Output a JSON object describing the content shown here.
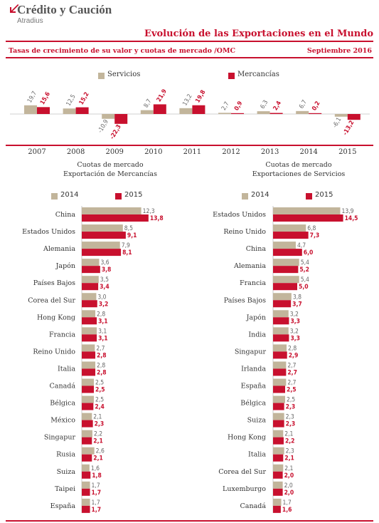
{
  "header": {
    "brand": "Crédito y Caución",
    "brand_sub": "Atradius",
    "title": "Evolución de las Exportaciones en el Mundo",
    "subtitle": "Tasas de crecimiento de su valor y cuotas de mercado /OMC",
    "date": "Septiembre 2016"
  },
  "colors": {
    "servicios": "#c2b59b",
    "mercancias": "#c8102e",
    "accent": "#c8102e"
  },
  "chart_data": [
    {
      "type": "bar",
      "legend": [
        "Servicios",
        "Mercancías"
      ],
      "categories": [
        "2007",
        "2008",
        "2009",
        "2010",
        "2011",
        "2012",
        "2013",
        "2014",
        "2015"
      ],
      "series": [
        {
          "name": "Servicios",
          "values": [
            19.7,
            12.5,
            -10.9,
            8.7,
            13.2,
            2.7,
            6.3,
            6.7,
            -6.1
          ],
          "labels": [
            "19,7",
            "12,5",
            "-10,9",
            "8,7",
            "13,2",
            "2,7",
            "6,3",
            "6,7",
            "-6,1"
          ]
        },
        {
          "name": "Mercancías",
          "values": [
            15.6,
            15.2,
            -22.3,
            21.9,
            19.8,
            0.9,
            2.4,
            0.2,
            -13.2
          ],
          "labels": [
            "15,6",
            "15,2",
            "-22,3",
            "21,9",
            "19,8",
            "0,9",
            "2,4",
            "0,2",
            "-13,2"
          ]
        }
      ]
    },
    {
      "type": "bar",
      "orientation": "horizontal",
      "title": "Cuotas de mercado\nExportación de Mercancías",
      "legend": [
        "2014",
        "2015"
      ],
      "categories": [
        "China",
        "Estados Unidos",
        "Alemania",
        "Japón",
        "Países Bajos",
        "Corea del Sur",
        "Hong Kong",
        "Francia",
        "Reino Unido",
        "Italia",
        "Canadá",
        "Bélgica",
        "México",
        "Singapur",
        "Rusia",
        "Suiza",
        "Taipei",
        "España"
      ],
      "series": [
        {
          "name": "2014",
          "values": [
            12.3,
            8.5,
            7.9,
            3.6,
            3.5,
            3.0,
            2.8,
            3.1,
            2.7,
            2.8,
            2.5,
            2.5,
            2.1,
            2.2,
            2.6,
            1.6,
            1.7,
            1.7
          ],
          "labels": [
            "12,3",
            "8,5",
            "7,9",
            "3,6",
            "3,5",
            "3,0",
            "2,8",
            "3,1",
            "2,7",
            "2,8",
            "2,5",
            "2,5",
            "2,1",
            "2,2",
            "2,6",
            "1,6",
            "1,7",
            "1,7"
          ]
        },
        {
          "name": "2015",
          "values": [
            13.8,
            9.1,
            8.1,
            3.8,
            3.4,
            3.2,
            3.1,
            3.1,
            2.8,
            2.8,
            2.5,
            2.4,
            2.3,
            2.1,
            2.1,
            1.8,
            1.7,
            1.7
          ],
          "labels": [
            "13,8",
            "9,1",
            "8,1",
            "3,8",
            "3,4",
            "3,2",
            "3,1",
            "3,1",
            "2,8",
            "2,8",
            "2,5",
            "2,4",
            "2,3",
            "2,1",
            "2,1",
            "1,8",
            "1,7",
            "1,7"
          ]
        }
      ]
    },
    {
      "type": "bar",
      "orientation": "horizontal",
      "title": "Cuotas de mercado\nExportaciones de Servicios",
      "legend": [
        "2014",
        "2015"
      ],
      "categories": [
        "Estados Unidos",
        "Reino Unido",
        "China",
        "Alemania",
        "Francia",
        "Países Bajos",
        "Japón",
        "India",
        "Singapur",
        "Irlanda",
        "España",
        "Bélgica",
        "Suiza",
        "Hong Kong",
        "Italia",
        "Corea del Sur",
        "Luxemburgo",
        "Canadá"
      ],
      "series": [
        {
          "name": "2014",
          "values": [
            13.9,
            6.8,
            4.7,
            5.4,
            5.4,
            3.8,
            3.2,
            3.2,
            2.8,
            2.7,
            2.7,
            2.5,
            2.3,
            2.1,
            2.3,
            2.1,
            2.0,
            1.7
          ],
          "labels": [
            "13,9",
            "6,8",
            "4,7",
            "5,4",
            "5,4",
            "3,8",
            "3,2",
            "3,2",
            "2,8",
            "2,7",
            "2,7",
            "2,5",
            "2,3",
            "2,1",
            "2,3",
            "2,1",
            "2,0",
            "1,7"
          ]
        },
        {
          "name": "2015",
          "values": [
            14.5,
            7.3,
            6.0,
            5.2,
            5.0,
            3.7,
            3.3,
            3.3,
            2.9,
            2.7,
            2.5,
            2.3,
            2.3,
            2.2,
            2.1,
            2.0,
            2.0,
            1.6
          ],
          "labels": [
            "14,5",
            "7,3",
            "6,0",
            "5,2",
            "5,0",
            "3,7",
            "3,3",
            "3,3",
            "2,9",
            "2,7",
            "2,5",
            "2,3",
            "2,3",
            "2,2",
            "2,1",
            "2,0",
            "2,0",
            "1,6"
          ]
        }
      ]
    }
  ]
}
